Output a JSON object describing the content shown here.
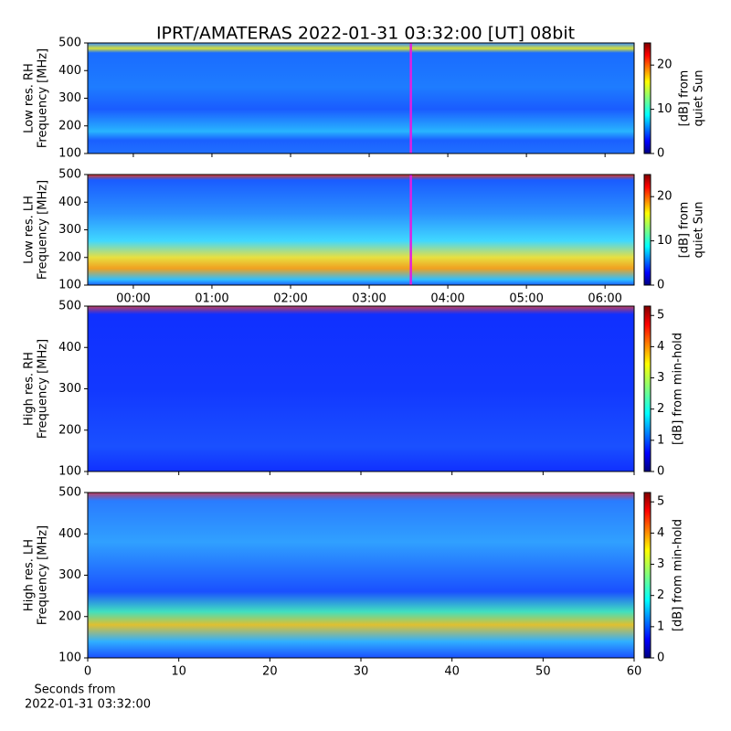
{
  "title": "IPRT/AMATERAS 2022-01-31 03:32:00 [UT]   08bit",
  "chart_data": [
    {
      "type": "heatmap",
      "ylabel": [
        "Low res. RH",
        "Frequency [MHz]"
      ],
      "xlim": [
        -0.58,
        6.37
      ],
      "xticks": [
        {
          "value": 0,
          "label": "00:00"
        },
        {
          "value": 1,
          "label": "01:00"
        },
        {
          "value": 2,
          "label": "02:00"
        },
        {
          "value": 3,
          "label": "03:00"
        },
        {
          "value": 4,
          "label": "04:00"
        },
        {
          "value": 5,
          "label": "05:00"
        },
        {
          "value": 6,
          "label": "06:00"
        }
      ],
      "xtick_labels": false,
      "ylim": [
        100,
        500
      ],
      "yticks": [
        100,
        200,
        300,
        400,
        500
      ],
      "marker_x": 3.53,
      "marker_color": "#e020e0",
      "colormap": "jet",
      "clim": [
        0,
        25
      ],
      "cticks": [
        0,
        10,
        20
      ],
      "clabel": [
        "[dB] from",
        "quiet Sun"
      ]
    },
    {
      "type": "heatmap",
      "ylabel": [
        "Low res. LH",
        "Frequency [MHz]"
      ],
      "xlim": [
        -0.58,
        6.37
      ],
      "xticks": [
        {
          "value": 0,
          "label": "00:00"
        },
        {
          "value": 1,
          "label": "01:00"
        },
        {
          "value": 2,
          "label": "02:00"
        },
        {
          "value": 3,
          "label": "03:00"
        },
        {
          "value": 4,
          "label": "04:00"
        },
        {
          "value": 5,
          "label": "05:00"
        },
        {
          "value": 6,
          "label": "06:00"
        }
      ],
      "xtick_labels": true,
      "ylim": [
        100,
        500
      ],
      "yticks": [
        100,
        200,
        300,
        400,
        500
      ],
      "marker_x": 3.53,
      "marker_color": "#e020e0",
      "colormap": "jet",
      "clim": [
        0,
        25
      ],
      "cticks": [
        0,
        10,
        20
      ],
      "clabel": [
        "[dB] from",
        "quiet Sun"
      ]
    },
    {
      "type": "heatmap",
      "ylabel": [
        "High res. RH",
        "Frequency [MHz]"
      ],
      "xlim": [
        0,
        60
      ],
      "xticks": [
        0,
        10,
        20,
        30,
        40,
        50,
        60
      ],
      "xtick_labels": false,
      "ylim": [
        100,
        500
      ],
      "yticks": [
        100,
        200,
        300,
        400,
        500
      ],
      "colormap": "jet",
      "clim": [
        0,
        5.3
      ],
      "cticks": [
        0,
        1,
        2,
        3,
        4,
        5
      ],
      "clabel": [
        "[dB] from min-hold"
      ]
    },
    {
      "type": "heatmap",
      "ylabel": [
        "High res. LH",
        "Frequency [MHz]"
      ],
      "xlim": [
        0,
        60
      ],
      "xticks": [
        0,
        10,
        20,
        30,
        40,
        50,
        60
      ],
      "xtick_labels": true,
      "xlabel": [
        "Seconds from",
        "2022-01-31 03:32:00"
      ],
      "ylim": [
        100,
        500
      ],
      "yticks": [
        100,
        200,
        300,
        400,
        500
      ],
      "colormap": "jet",
      "clim": [
        0,
        5.3
      ],
      "cticks": [
        0,
        1,
        2,
        3,
        4,
        5
      ],
      "clabel": [
        "[dB] from min-hold"
      ]
    }
  ]
}
